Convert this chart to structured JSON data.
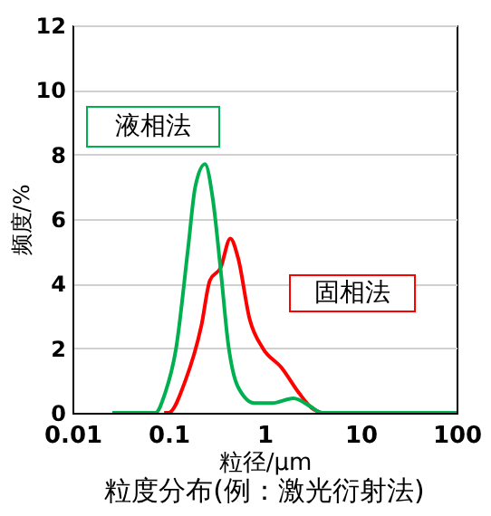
{
  "chart_data": {
    "type": "line",
    "title": "粒度分布(例：激光衍射法)",
    "xlabel": "粒径/μm",
    "ylabel": "频度/%",
    "annotations": [
      "液相法",
      "固相法"
    ],
    "log": "x",
    "xlim": [
      0.01,
      100
    ],
    "xticks": [
      0.01,
      0.1,
      1,
      10,
      100
    ],
    "ylim": [
      0,
      12
    ],
    "yticks": [
      0,
      2,
      4,
      6,
      8,
      10,
      12
    ],
    "grid": "y",
    "series": [
      {
        "color": "#ff0000",
        "x": [
          0.09,
          0.1,
          0.15,
          0.22,
          0.27,
          0.35,
          0.44,
          0.53,
          0.7,
          0.96,
          1.5,
          2.3,
          3.1,
          3.9
        ],
        "values": [
          0,
          0,
          1.0,
          2.7,
          4.1,
          4.5,
          5.4,
          4.8,
          2.9,
          2.0,
          1.4,
          0.6,
          0.15,
          0
        ]
      },
      {
        "color": "#00b050",
        "x": [
          0.026,
          0.073,
          0.092,
          0.12,
          0.16,
          0.19,
          0.24,
          0.29,
          0.35,
          0.42,
          0.53,
          0.79,
          1.2,
          2.0,
          3.0,
          3.9,
          100
        ],
        "values": [
          0,
          0,
          0.6,
          2.0,
          5.1,
          7.0,
          7.7,
          6.6,
          4.4,
          2.1,
          0.8,
          0.3,
          0.3,
          0.45,
          0.2,
          0,
          0
        ]
      }
    ]
  }
}
